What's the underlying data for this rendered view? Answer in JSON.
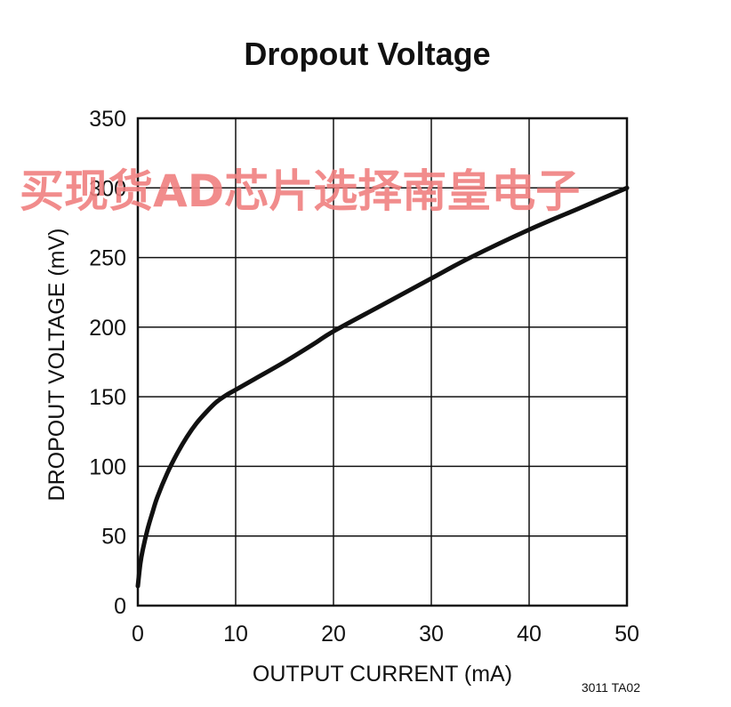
{
  "chart_data": {
    "type": "line",
    "title": "Dropout Voltage",
    "xlabel": "OUTPUT CURRENT (mA)",
    "ylabel": "DROPOUT VOLTAGE (mV)",
    "xlim": [
      0,
      50
    ],
    "ylim": [
      0,
      350
    ],
    "xticks": [
      0,
      10,
      20,
      30,
      40,
      50
    ],
    "yticks": [
      0,
      50,
      100,
      150,
      200,
      250,
      300,
      350
    ],
    "grid": true,
    "series": [
      {
        "x": [
          0,
          0.25,
          0.5,
          1,
          1.5,
          2,
          3,
          4,
          5,
          6,
          7,
          8,
          9,
          10,
          12,
          15,
          18,
          20,
          25,
          30,
          34,
          40,
          45,
          50
        ],
        "y": [
          14,
          30,
          40,
          55,
          67,
          78,
          95,
          109,
          121,
          131,
          139,
          146,
          151,
          155,
          163,
          175,
          188,
          197,
          216,
          235,
          250,
          270,
          285,
          300
        ]
      }
    ]
  },
  "figure_code": "3011 TA02",
  "watermark": "买现货AD芯片选择南皇电子",
  "colors": {
    "line": "#111111",
    "grid": "#111111",
    "watermark": "#f08080"
  }
}
